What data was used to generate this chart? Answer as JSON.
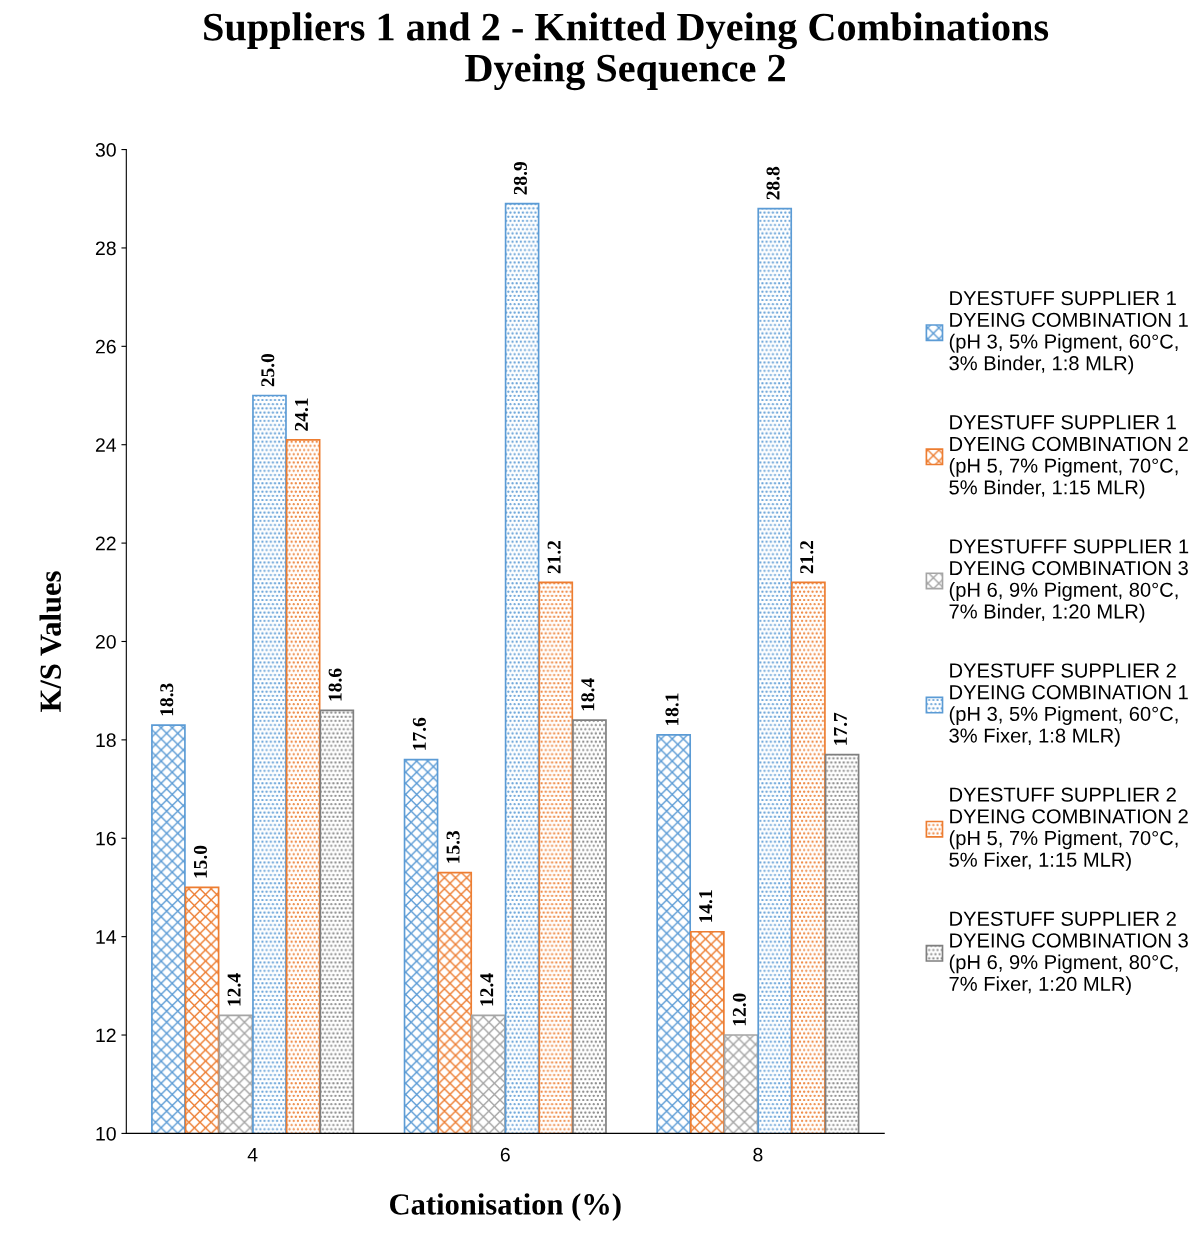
{
  "chart_data": {
    "type": "bar",
    "title": "Suppliers 1 and 2 - Knitted Dyeing Combinations\nDyeing Sequence 2",
    "xlabel": "Cationisation (%)",
    "ylabel": "K/S Values",
    "categories": [
      "4",
      "6",
      "8"
    ],
    "series": [
      {
        "name": "DYESTUFF SUPPLIER 1\nDYEING COMBINATION 1\n(pH 3, 5% Pigment, 60°C,\n3% Binder, 1:8 MLR)",
        "color": "#5b9bd5",
        "values": [
          18.3,
          17.6,
          18.1
        ],
        "value_labels": [
          "18.3",
          "17.6",
          "18.1"
        ]
      },
      {
        "name": "DYESTUFF SUPPLIER 1\nDYEING COMBINATION 2\n(pH 5, 7% Pigment, 70°C,\n5% Binder, 1:15 MLR)",
        "color": "#ed7d31",
        "values": [
          15.0,
          15.3,
          14.1
        ],
        "value_labels": [
          "15.0",
          "15.3",
          "14.1"
        ]
      },
      {
        "name": "DYESTUFFF SUPPLIER 1\nDYEING COMBINATION 3\n(pH 6, 9% Pigment, 80°C,\n7% Binder, 1:20 MLR)",
        "color": "#a5a5a5",
        "values": [
          12.4,
          12.4,
          12.0
        ],
        "value_labels": [
          "12.4",
          "12.4",
          "12.0"
        ]
      },
      {
        "name": "DYESTUFF SUPPLIER 2\nDYEING COMBINATION 1\n(pH 3, 5% Pigment, 60°C,\n3% Fixer, 1:8 MLR)",
        "color": "#5b9bd5",
        "values": [
          25.0,
          28.9,
          28.8
        ],
        "value_labels": [
          "25.0",
          "28.9",
          "28.8"
        ]
      },
      {
        "name": "DYESTUFF SUPPLIER 2\nDYEING COMBINATION 2\n(pH 5, 7% Pigment, 70°C,\n5% Fixer, 1:15 MLR)",
        "color": "#ed7d31",
        "values": [
          24.1,
          21.2,
          21.2
        ],
        "value_labels": [
          "24.1",
          "21.2",
          "21.2"
        ]
      },
      {
        "name": "DYESTUFF SUPPLIER 2\nDYEING COMBINATION 3\n(pH 6, 9% Pigment, 80°C,\n7% Fixer, 1:20 MLR)",
        "color": "#7f7f7f",
        "values": [
          18.6,
          18.4,
          17.7
        ],
        "value_labels": [
          "18.6",
          "18.4",
          "17.7"
        ]
      }
    ],
    "ylim": [
      10,
      30
    ],
    "yticks": [
      10,
      12,
      14,
      16,
      18,
      20,
      22,
      24,
      26,
      28,
      30
    ],
    "grid": false,
    "legend": "right"
  }
}
